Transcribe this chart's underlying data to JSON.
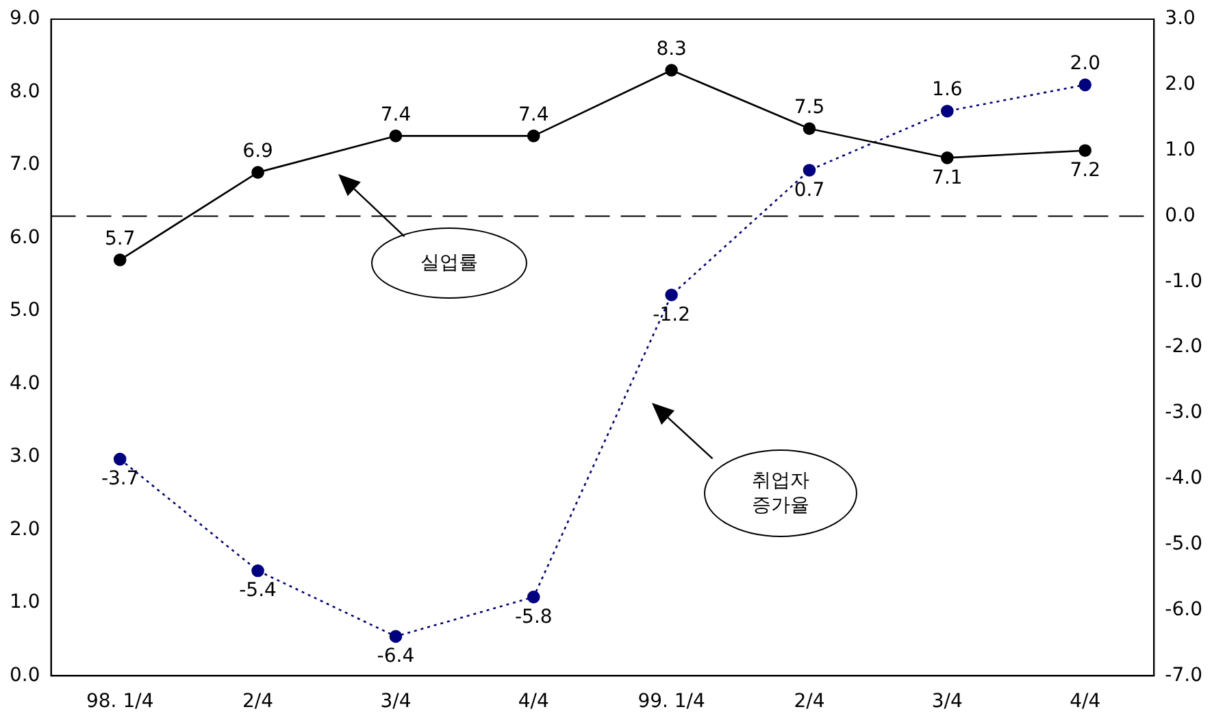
{
  "chart_data": {
    "type": "line",
    "categories": [
      "98. 1/4",
      "2/4",
      "3/4",
      "4/4",
      "99. 1/4",
      "2/4",
      "3/4",
      "4/4"
    ],
    "series": [
      {
        "color": "#000000",
        "line_style": "solid",
        "values": [
          5.7,
          6.9,
          7.4,
          7.4,
          8.3,
          7.5,
          7.1,
          7.2
        ],
        "value_labels": [
          "5.7",
          "6.9",
          "7.4",
          "7.4",
          "8.3",
          "7.5",
          "7.1",
          "7.2"
        ]
      },
      {
        "color": "#000080",
        "line_style": "dotted",
        "axis": "y2",
        "values": [
          -3.7,
          -5.4,
          -6.4,
          -5.8,
          -1.2,
          0.7,
          1.6,
          2.0
        ],
        "value_labels": [
          "-3.7",
          "-5.4",
          "-6.4",
          "-5.8",
          "-1.2",
          "0.7",
          "1.6",
          "2.0"
        ]
      }
    ],
    "ylim": [
      0,
      9
    ],
    "yticks": [
      {
        "value": 0,
        "label": "0.0"
      },
      {
        "value": 1,
        "label": "1.0"
      },
      {
        "value": 2,
        "label": "2.0"
      },
      {
        "value": 3,
        "label": "3.0"
      },
      {
        "value": 4,
        "label": "4.0"
      },
      {
        "value": 5,
        "label": "5.0"
      },
      {
        "value": 6,
        "label": "6.0"
      },
      {
        "value": 7,
        "label": "7.0"
      },
      {
        "value": 8,
        "label": "8.0"
      },
      {
        "value": 9,
        "label": "9.0"
      }
    ],
    "y2lim": [
      -7,
      3
    ],
    "y2ticks": [
      {
        "value": -7,
        "label": "-7.0"
      },
      {
        "value": -6,
        "label": "-6.0"
      },
      {
        "value": -5,
        "label": "-5.0"
      },
      {
        "value": -4,
        "label": "-4.0"
      },
      {
        "value": -3,
        "label": "-3.0"
      },
      {
        "value": -2,
        "label": "-2.0"
      },
      {
        "value": -1,
        "label": "-1.0"
      },
      {
        "value": 0,
        "label": "0.0"
      },
      {
        "value": 1,
        "label": "1.0"
      },
      {
        "value": 2,
        "label": "2.0"
      },
      {
        "value": 3,
        "label": "3.0"
      }
    ],
    "ref_lines": [
      {
        "axis": "y2",
        "value": 0,
        "color": "#000000",
        "line_style": "dashed"
      }
    ],
    "annotations": [
      "실업률",
      "취업자\n증가율"
    ],
    "marker": "circle",
    "grid": false,
    "legend": false
  }
}
